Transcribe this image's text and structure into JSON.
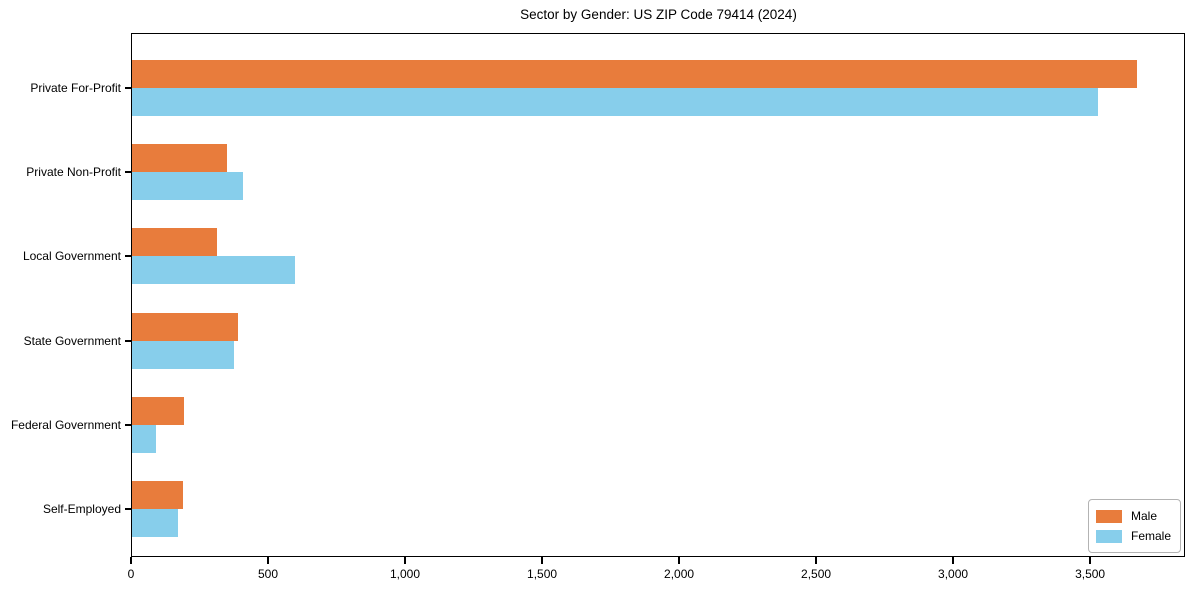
{
  "chart_data": {
    "type": "bar",
    "orientation": "horizontal",
    "title": "Sector by Gender: US ZIP Code 79414 (2024)",
    "categories": [
      "Private For-Profit",
      "Private Non-Profit",
      "Local Government",
      "State Government",
      "Federal Government",
      "Self-Employed"
    ],
    "series": [
      {
        "name": "Male",
        "color": "#e87c3c",
        "values": [
          3670,
          350,
          315,
          390,
          195,
          190
        ]
      },
      {
        "name": "Female",
        "color": "#87ceeb",
        "values": [
          3530,
          410,
          600,
          375,
          90,
          170
        ]
      }
    ],
    "xlabel": "",
    "ylabel": "",
    "xlim": [
      0,
      3850
    ],
    "xticks": [
      0,
      500,
      1000,
      1500,
      2000,
      2500,
      3000,
      3500
    ],
    "xtick_labels": [
      "0",
      "500",
      "1,000",
      "1,500",
      "2,000",
      "2,500",
      "3,000",
      "3,500"
    ],
    "grid": false,
    "legend": {
      "position": "lower right",
      "entries": [
        "Male",
        "Female"
      ]
    },
    "spine_color": "#000000",
    "background_color": "#ffffff"
  }
}
